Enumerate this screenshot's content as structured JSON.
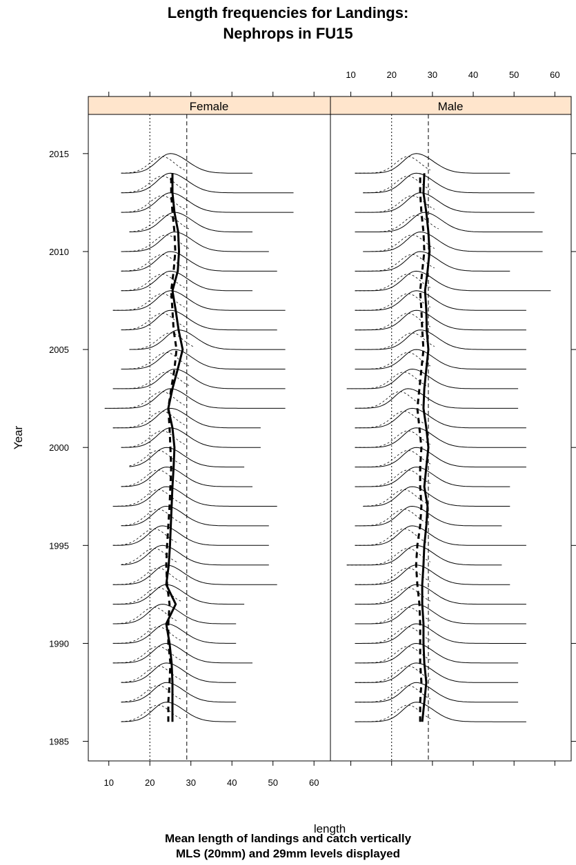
{
  "chart_data": {
    "type": "line",
    "title_lines": [
      "Length frequencies for Landings:",
      "Nephrops in FU15"
    ],
    "xlabel": "length",
    "ylabel": "Year",
    "subtitle_lines": [
      "Mean length of landings and catch vertically",
      "MLS (20mm) and 29mm levels displayed"
    ],
    "panels": [
      "Female",
      "Male"
    ],
    "strip_color": "#ffe5cc",
    "xlim": [
      5,
      64
    ],
    "ylim": [
      1984,
      2017
    ],
    "x_ticks": [
      10,
      20,
      30,
      40,
      50,
      60
    ],
    "y_ticks": [
      1985,
      1990,
      1995,
      2000,
      2005,
      2010,
      2015
    ],
    "reference_lines": [
      {
        "x": 20,
        "style": "dotted",
        "label": "MLS (20mm)"
      },
      {
        "x": 29,
        "style": "dashed",
        "label": "29mm"
      }
    ],
    "years": [
      1986,
      1987,
      1988,
      1989,
      1990,
      1991,
      1992,
      1993,
      1994,
      1995,
      1996,
      1997,
      1998,
      1999,
      2000,
      2001,
      2002,
      2003,
      2004,
      2005,
      2006,
      2007,
      2008,
      2009,
      2010,
      2011,
      2012,
      2013,
      2014
    ],
    "series": [
      {
        "name": "Female",
        "x_min": [
          13,
          13,
          13,
          11,
          11,
          11,
          11,
          11,
          13,
          11,
          13,
          11,
          13,
          15,
          13,
          11,
          9,
          11,
          13,
          15,
          13,
          11,
          13,
          13,
          13,
          15,
          13,
          13,
          13
        ],
        "x_max": [
          41,
          41,
          41,
          45,
          41,
          41,
          43,
          51,
          49,
          49,
          49,
          51,
          45,
          43,
          47,
          47,
          53,
          53,
          53,
          53,
          51,
          53,
          45,
          51,
          49,
          45,
          55,
          55,
          45
        ],
        "mode": [
          24,
          24,
          24,
          24,
          24,
          23,
          24,
          24,
          23,
          23,
          24,
          24,
          24,
          24,
          25,
          25,
          25,
          26,
          26,
          27,
          25,
          25,
          25,
          25,
          26,
          26,
          25,
          25,
          25
        ],
        "mean_landings": [
          25.5,
          25.5,
          25.5,
          25.3,
          24.8,
          24.0,
          26.3,
          24.0,
          24.6,
          24.9,
          25.1,
          25.3,
          25.5,
          25.8,
          26.0,
          25.5,
          24.5,
          25.5,
          26.8,
          28.0,
          27.0,
          26.3,
          25.5,
          26.8,
          27.1,
          26.9,
          26.0,
          25.5,
          25.5
        ],
        "mean_catch": [
          24.5,
          24.5,
          24.8,
          25.0,
          24.5,
          24.5,
          24.8,
          24.2,
          24.0,
          24.2,
          24.5,
          24.8,
          25.0,
          25.2,
          25.0,
          24.8,
          24.5,
          25.2,
          26.0,
          26.5,
          25.8,
          25.5,
          25.2,
          25.8,
          26.2,
          26.0,
          25.5,
          25.2,
          25.2
        ]
      },
      {
        "name": "Male",
        "x_min": [
          11,
          11,
          11,
          11,
          11,
          11,
          11,
          11,
          9,
          11,
          11,
          13,
          11,
          11,
          11,
          11,
          11,
          9,
          11,
          11,
          11,
          11,
          11,
          11,
          13,
          11,
          11,
          13,
          11
        ],
        "x_max": [
          53,
          51,
          51,
          51,
          53,
          53,
          53,
          49,
          47,
          53,
          47,
          49,
          49,
          53,
          53,
          53,
          51,
          51,
          53,
          53,
          53,
          53,
          59,
          49,
          57,
          57,
          55,
          55,
          49
        ],
        "mode": [
          26,
          26,
          26,
          26,
          26,
          26,
          26,
          26,
          26,
          25,
          25,
          25,
          26,
          26,
          26,
          25,
          24,
          25,
          26,
          27,
          26,
          26,
          26,
          27,
          27,
          28,
          27,
          26,
          26
        ],
        "mean_landings": [
          27.5,
          28.0,
          28.5,
          28.0,
          27.8,
          27.8,
          27.5,
          27.5,
          27.8,
          28.0,
          28.5,
          28.8,
          28.0,
          28.5,
          29.0,
          28.5,
          27.8,
          28.0,
          28.5,
          29.0,
          28.6,
          28.5,
          28.2,
          28.8,
          29.3,
          29.0,
          28.5,
          27.8,
          28.0
        ],
        "mean_catch": [
          27.0,
          27.0,
          27.3,
          27.0,
          27.0,
          27.0,
          26.8,
          26.3,
          26.0,
          26.3,
          27.0,
          27.3,
          27.0,
          27.0,
          27.3,
          26.8,
          26.3,
          26.8,
          27.3,
          27.8,
          27.5,
          27.3,
          27.0,
          27.5,
          28.0,
          27.8,
          27.3,
          27.0,
          27.0
        ]
      }
    ]
  }
}
